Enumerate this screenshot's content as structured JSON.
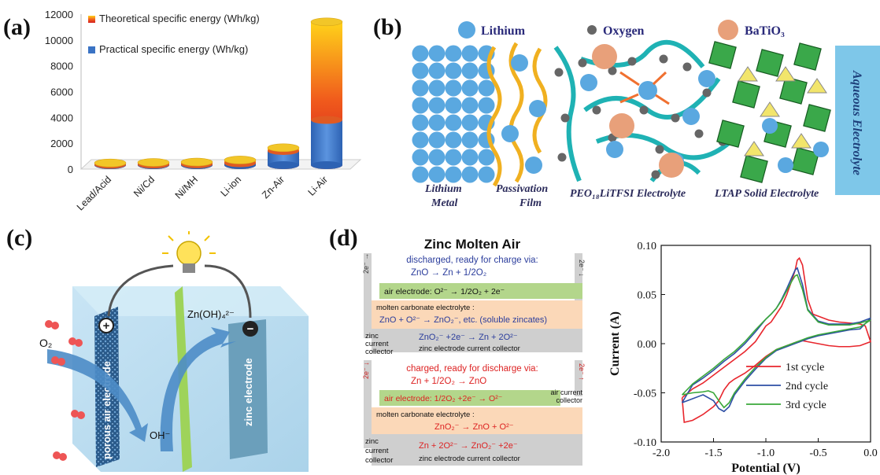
{
  "panels": {
    "a": "(a)",
    "b": "(b)",
    "c": "(c)",
    "d": "(d)"
  },
  "panel_a": {
    "legend": {
      "theoretical": "Theoretical specific energy (Wh/kg)",
      "practical": "Practical specific energy (Wh/kg)"
    },
    "yticks": [
      "0",
      "2000",
      "4000",
      "6000",
      "8000",
      "10000",
      "12000"
    ]
  },
  "panel_b": {
    "legend": {
      "lithium": "Lithium",
      "oxygen": "Oxygen",
      "batio3": "BaTiO₃"
    },
    "labels": {
      "lithium_metal_1": "Lithium",
      "lithium_metal_2": "Metal",
      "passivation_1": "Passivation",
      "passivation_2": "Film",
      "peo": "PEO₁₈LiTFSI Electrolyte",
      "ltap": "LTAP Solid Electrolyte",
      "aqueous": "Aqueous Electrolyte"
    }
  },
  "panel_c": {
    "o2": "O₂",
    "oh": "OH⁻",
    "zn": "Zn(OH)₄²⁻",
    "porous": "porous air electrode",
    "zinc": "zinc electrode",
    "plus": "+",
    "minus": "−"
  },
  "panel_d": {
    "title": "Zinc Molten Air",
    "top": {
      "line1": "discharged, ready for charge via:",
      "line2": "ZnO → Zn + 1/2O₂",
      "e_left": "2e⁻ →",
      "e_right": "2e⁻ ↓",
      "air": "air electrode: O²⁻ → 1/2O₂ + 2e⁻",
      "molten": "molten carbonate electrolyte :",
      "molten_eq": "ZnO + O²⁻ → ZnO₂⁻, etc. (soluble zincates)",
      "zinc1": "zinc",
      "zinc2": "current",
      "zinc3": "collector",
      "zinc_eq": "ZnO₂⁻ +2e⁻ → Zn + 2O²⁻",
      "zinc_cc": "zinc electrode current collector"
    },
    "bottom": {
      "line1": "charged, ready for discharge via:",
      "line2": "Zn + 1/2O₂ → ZnO",
      "e_left": "2e⁻ ↓",
      "e_right": "2e⁻ ↑",
      "air": "air electrode: 1/2O₂ +2e⁻ → O²⁻",
      "air_cc1": "air current",
      "air_cc2": "collector",
      "molten": "molten carbonate electrolyte :",
      "molten_eq": "ZnO₂⁻ → ZnO + O²⁻",
      "zinc1": "zinc",
      "zinc2": "current",
      "zinc3": "collector",
      "zinc_eq": "Zn + 2O²⁻ → ZnO₂⁻ +2e⁻",
      "zinc_cc": "zinc electrode current collector"
    }
  },
  "chart_data": [
    {
      "type": "bar",
      "title": "",
      "xlabel": "",
      "ylabel": "",
      "categories": [
        "Lead/Acid",
        "Ni/Cd",
        "Ni/MH",
        "Li-ion",
        "Zn-Air",
        "Li-Air"
      ],
      "ylim": [
        0,
        12000
      ],
      "series": [
        {
          "name": "Theoretical specific energy (Wh/kg)",
          "values": [
            170,
            210,
            240,
            400,
            1350,
            11100
          ],
          "color": "#e8442a"
        },
        {
          "name": "Practical specific energy (Wh/kg)",
          "values": [
            40,
            50,
            70,
            150,
            1100,
            3500
          ],
          "color": "#3a73c4"
        }
      ],
      "legend": "top-left",
      "grid": false
    },
    {
      "type": "line",
      "title": "",
      "xlabel": "Potential (V)",
      "ylabel": "Current (A)",
      "xlim": [
        -2.0,
        0.0
      ],
      "ylim": [
        -0.1,
        0.1
      ],
      "xticks": [
        "-2.0",
        "-1.5",
        "-1.0",
        "-0.5",
        "0.0"
      ],
      "yticks": [
        "-0.10",
        "-0.05",
        "0.00",
        "0.05",
        "0.10"
      ],
      "legend": "bottom-right",
      "grid": false,
      "series": [
        {
          "name": "1st cycle",
          "color": "#e8262d",
          "x": [
            -1.8,
            -1.78,
            -1.7,
            -1.6,
            -1.5,
            -1.45,
            -1.4,
            -1.35,
            -1.3,
            -1.2,
            -1.1,
            -1.0,
            -0.9,
            -0.8,
            -0.75,
            -0.7,
            -0.65,
            -0.6,
            -0.55,
            -0.5,
            -0.4,
            -0.3,
            -0.2,
            -0.1,
            0.0
          ],
          "y": [
            -0.055,
            -0.08,
            -0.078,
            -0.072,
            -0.064,
            -0.058,
            -0.047,
            -0.04,
            -0.036,
            -0.03,
            -0.022,
            -0.013,
            -0.006,
            -0.002,
            0.0,
            0.002,
            0.003,
            0.002,
            0.001,
            0.0,
            -0.002,
            -0.003,
            -0.003,
            -0.002,
            0.002
          ],
          "x2": [
            0.0,
            -0.05,
            -0.1,
            -0.2,
            -0.3,
            -0.4,
            -0.5,
            -0.55,
            -0.6,
            -0.65,
            -0.68,
            -0.7,
            -0.72,
            -0.75,
            -0.8,
            -0.85,
            -0.9,
            -0.95,
            -1.0,
            -1.05,
            -1.1,
            -1.2,
            -1.3,
            -1.4,
            -1.5,
            -1.6,
            -1.7,
            -1.8
          ],
          "y2": [
            0.002,
            0.018,
            0.02,
            0.021,
            0.022,
            0.024,
            0.028,
            0.03,
            0.045,
            0.08,
            0.087,
            0.085,
            0.075,
            0.065,
            0.05,
            0.038,
            0.03,
            0.022,
            0.018,
            0.01,
            0.002,
            -0.008,
            -0.016,
            -0.024,
            -0.032,
            -0.04,
            -0.046,
            -0.055
          ]
        },
        {
          "name": "2nd cycle",
          "color": "#2e4fa5",
          "x": [
            -1.8,
            -1.7,
            -1.6,
            -1.5,
            -1.45,
            -1.4,
            -1.35,
            -1.3,
            -1.2,
            -1.1,
            -1.0,
            -0.9,
            -0.8,
            -0.75,
            -0.7,
            -0.6,
            -0.5,
            -0.4,
            -0.3,
            -0.2,
            -0.1,
            0.0
          ],
          "y": [
            -0.06,
            -0.056,
            -0.052,
            -0.058,
            -0.066,
            -0.069,
            -0.064,
            -0.052,
            -0.038,
            -0.026,
            -0.015,
            -0.007,
            -0.003,
            -0.001,
            0.001,
            0.005,
            0.008,
            0.01,
            0.012,
            0.014,
            0.015,
            0.026
          ],
          "x2": [
            0.0,
            -0.1,
            -0.2,
            -0.3,
            -0.4,
            -0.5,
            -0.6,
            -0.65,
            -0.7,
            -0.72,
            -0.75,
            -0.8,
            -0.85,
            -0.9,
            -0.95,
            -1.0,
            -1.1,
            -1.2,
            -1.3,
            -1.4,
            -1.5,
            -1.6,
            -1.7,
            -1.8
          ],
          "y2": [
            0.026,
            0.022,
            0.02,
            0.02,
            0.02,
            0.023,
            0.035,
            0.06,
            0.077,
            0.075,
            0.068,
            0.056,
            0.045,
            0.036,
            0.03,
            0.025,
            0.012,
            0.0,
            -0.01,
            -0.018,
            -0.027,
            -0.035,
            -0.042,
            -0.06
          ]
        },
        {
          "name": "3rd cycle",
          "color": "#3aa83a",
          "x": [
            -1.8,
            -1.7,
            -1.6,
            -1.55,
            -1.5,
            -1.45,
            -1.4,
            -1.35,
            -1.3,
            -1.2,
            -1.1,
            -1.0,
            -0.9,
            -0.8,
            -0.7,
            -0.6,
            -0.5,
            -0.4,
            -0.3,
            -0.2,
            -0.1,
            0.0
          ],
          "y": [
            -0.052,
            -0.05,
            -0.049,
            -0.048,
            -0.05,
            -0.058,
            -0.065,
            -0.06,
            -0.05,
            -0.036,
            -0.024,
            -0.014,
            -0.006,
            -0.002,
            0.002,
            0.006,
            0.009,
            0.011,
            0.013,
            0.015,
            0.017,
            0.024
          ],
          "x2": [
            0.0,
            -0.1,
            -0.2,
            -0.3,
            -0.4,
            -0.5,
            -0.6,
            -0.65,
            -0.7,
            -0.72,
            -0.75,
            -0.8,
            -0.85,
            -0.9,
            -0.95,
            -1.0,
            -1.1,
            -1.2,
            -1.3,
            -1.4,
            -1.5,
            -1.6,
            -1.7,
            -1.8
          ],
          "y2": [
            0.024,
            0.021,
            0.019,
            0.019,
            0.019,
            0.022,
            0.034,
            0.055,
            0.07,
            0.069,
            0.064,
            0.054,
            0.044,
            0.036,
            0.03,
            0.025,
            0.014,
            0.002,
            -0.008,
            -0.016,
            -0.025,
            -0.033,
            -0.041,
            -0.052
          ]
        }
      ]
    }
  ]
}
